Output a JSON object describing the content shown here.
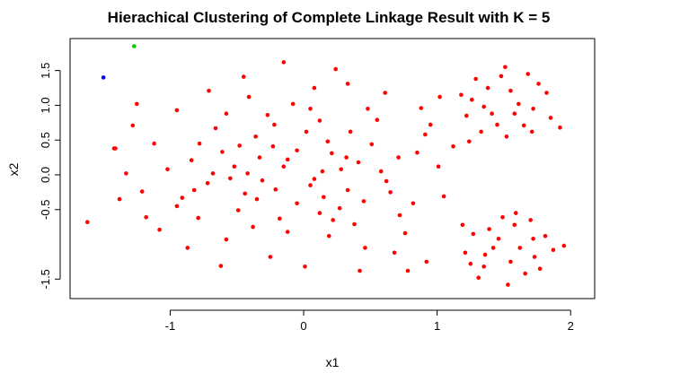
{
  "chart_data": {
    "type": "scatter",
    "title": "Hierachical Clustering of Complete Linkage Result with K = 5",
    "xlabel": "x1",
    "ylabel": "x2",
    "xlim": [
      -1.75,
      2.18
    ],
    "ylim": [
      -1.78,
      1.96
    ],
    "x_ticks": [
      -1,
      0,
      1,
      2
    ],
    "x_tick_labels": [
      "-1",
      "0",
      "1",
      "2"
    ],
    "y_ticks": [
      -1.5,
      -0.5,
      0.0,
      0.5,
      1.0,
      1.5
    ],
    "y_tick_labels": [
      "-1.5",
      "-0.5",
      "0.0",
      "0.5",
      "1.0",
      "1.5"
    ],
    "grid": false,
    "legend": "none",
    "colors": {
      "red": "#ff0000",
      "green": "#00cc00",
      "blue": "#0000ff"
    },
    "series": [
      {
        "color": "#ff0000",
        "points": [
          [
            -0.52,
            0.12
          ],
          [
            -0.31,
            -0.08
          ],
          [
            -0.12,
            0.22
          ],
          [
            0.05,
            -0.15
          ],
          [
            0.21,
            0.31
          ],
          [
            -0.44,
            -0.27
          ],
          [
            -0.23,
            0.41
          ],
          [
            0.14,
            0.05
          ],
          [
            -0.61,
            0.33
          ],
          [
            0.33,
            -0.22
          ],
          [
            -0.05,
            -0.41
          ],
          [
            0.41,
            0.18
          ],
          [
            -0.72,
            -0.12
          ],
          [
            -0.36,
            0.55
          ],
          [
            0.02,
            0.62
          ],
          [
            0.27,
            -0.48
          ],
          [
            -0.84,
            0.21
          ],
          [
            -0.18,
            -0.63
          ],
          [
            0.51,
            0.44
          ],
          [
            -0.49,
            -0.51
          ],
          [
            0.12,
            0.78
          ],
          [
            -0.91,
            -0.33
          ],
          [
            0.62,
            -0.09
          ],
          [
            -0.27,
            0.86
          ],
          [
            0.38,
            -0.71
          ],
          [
            -0.66,
            0.67
          ],
          [
            0.71,
            0.25
          ],
          [
            -1.02,
            0.08
          ],
          [
            -0.08,
            1.02
          ],
          [
            0.19,
            -0.88
          ],
          [
            -0.79,
            -0.62
          ],
          [
            0.55,
            0.79
          ],
          [
            -1.12,
            0.45
          ],
          [
            0.82,
            -0.41
          ],
          [
            -0.41,
            1.12
          ],
          [
            -0.58,
            -0.93
          ],
          [
            0.91,
            0.58
          ],
          [
            -1.21,
            -0.24
          ],
          [
            0.08,
            1.25
          ],
          [
            0.46,
            -1.05
          ],
          [
            -0.95,
            0.93
          ],
          [
            1.01,
            0.12
          ],
          [
            -0.25,
            -1.18
          ],
          [
            0.33,
            1.31
          ],
          [
            -1.28,
            0.71
          ],
          [
            0.76,
            -0.84
          ],
          [
            -0.71,
            1.21
          ],
          [
            -1.08,
            -0.79
          ],
          [
            0.88,
            0.96
          ],
          [
            -1.33,
            0.02
          ],
          [
            0.01,
            -1.32
          ],
          [
            0.61,
            1.18
          ],
          [
            -0.45,
            1.41
          ],
          [
            1.05,
            -0.31
          ],
          [
            -1.18,
            -0.61
          ],
          [
            0.24,
            1.52
          ],
          [
            -0.87,
            -1.05
          ],
          [
            0.95,
            0.72
          ],
          [
            -1.42,
            0.38
          ],
          [
            0.68,
            -1.12
          ],
          [
            -0.15,
            1.62
          ],
          [
            -0.62,
            -1.31
          ],
          [
            0.42,
            -1.38
          ],
          [
            -1.25,
            1.02
          ],
          [
            1.12,
            0.41
          ],
          [
            -0.35,
            -0.35
          ],
          [
            0.15,
            -0.32
          ],
          [
            -0.05,
            0.35
          ],
          [
            -0.42,
            0.02
          ],
          [
            0.28,
            0.08
          ],
          [
            -0.21,
            -0.21
          ],
          [
            0.08,
            -0.06
          ],
          [
            -0.33,
            0.25
          ],
          [
            0.18,
            0.48
          ],
          [
            -0.55,
            -0.05
          ],
          [
            0.45,
            -0.38
          ],
          [
            -0.15,
            0.12
          ],
          [
            -0.48,
            0.42
          ],
          [
            0.35,
            0.62
          ],
          [
            0.22,
            -0.65
          ],
          [
            -0.68,
            0.02
          ],
          [
            0.58,
            0.05
          ],
          [
            -0.12,
            -0.82
          ],
          [
            0.05,
            0.95
          ],
          [
            -0.78,
            0.45
          ],
          [
            0.72,
            -0.58
          ],
          [
            -0.38,
            -0.75
          ],
          [
            0.48,
            0.95
          ],
          [
            -0.95,
            -0.45
          ],
          [
            0.85,
            0.32
          ],
          [
            -0.22,
            0.72
          ],
          [
            0.12,
            -0.55
          ],
          [
            -0.58,
            0.88
          ],
          [
            0.65,
            -0.25
          ],
          [
            -0.82,
            -0.22
          ],
          [
            0.32,
            0.25
          ],
          [
            1.26,
            1.08
          ],
          [
            1.41,
            0.88
          ],
          [
            1.55,
            1.21
          ],
          [
            1.72,
            0.95
          ],
          [
            1.33,
            0.62
          ],
          [
            1.48,
            1.42
          ],
          [
            1.65,
            0.71
          ],
          [
            1.82,
            1.18
          ],
          [
            1.22,
            0.85
          ],
          [
            1.38,
            1.25
          ],
          [
            1.52,
            0.55
          ],
          [
            1.68,
            1.45
          ],
          [
            1.85,
            0.82
          ],
          [
            1.29,
            1.38
          ],
          [
            1.45,
            0.72
          ],
          [
            1.61,
            1.02
          ],
          [
            1.76,
            1.31
          ],
          [
            1.18,
            1.15
          ],
          [
            1.35,
            0.98
          ],
          [
            1.58,
            0.88
          ],
          [
            1.71,
            0.62
          ],
          [
            1.92,
            0.68
          ],
          [
            1.24,
            0.48
          ],
          [
            1.51,
            1.55
          ],
          [
            1.27,
            -0.85
          ],
          [
            1.42,
            -1.05
          ],
          [
            1.58,
            -0.72
          ],
          [
            1.73,
            -1.18
          ],
          [
            1.35,
            -1.32
          ],
          [
            1.49,
            -0.61
          ],
          [
            1.66,
            -1.42
          ],
          [
            1.81,
            -0.88
          ],
          [
            1.21,
            -1.12
          ],
          [
            1.39,
            -0.78
          ],
          [
            1.55,
            -1.25
          ],
          [
            1.7,
            -0.65
          ],
          [
            1.87,
            -1.08
          ],
          [
            1.31,
            -1.48
          ],
          [
            1.46,
            -0.92
          ],
          [
            1.62,
            -1.05
          ],
          [
            1.77,
            -1.35
          ],
          [
            1.19,
            -0.72
          ],
          [
            1.36,
            -1.15
          ],
          [
            1.59,
            -0.55
          ],
          [
            1.72,
            -0.92
          ],
          [
            1.95,
            -1.02
          ],
          [
            1.25,
            -1.28
          ],
          [
            1.53,
            -1.58
          ],
          [
            -1.62,
            -0.68
          ],
          [
            -1.41,
            0.38
          ],
          [
            -1.38,
            -0.35
          ],
          [
            0.92,
            -1.25
          ],
          [
            0.78,
            -1.38
          ],
          [
            1.02,
            1.12
          ]
        ]
      },
      {
        "color": "#00cc00",
        "points": [
          [
            -1.27,
            1.85
          ]
        ]
      },
      {
        "color": "#0000ff",
        "points": [
          [
            -1.5,
            1.4
          ]
        ]
      }
    ]
  }
}
